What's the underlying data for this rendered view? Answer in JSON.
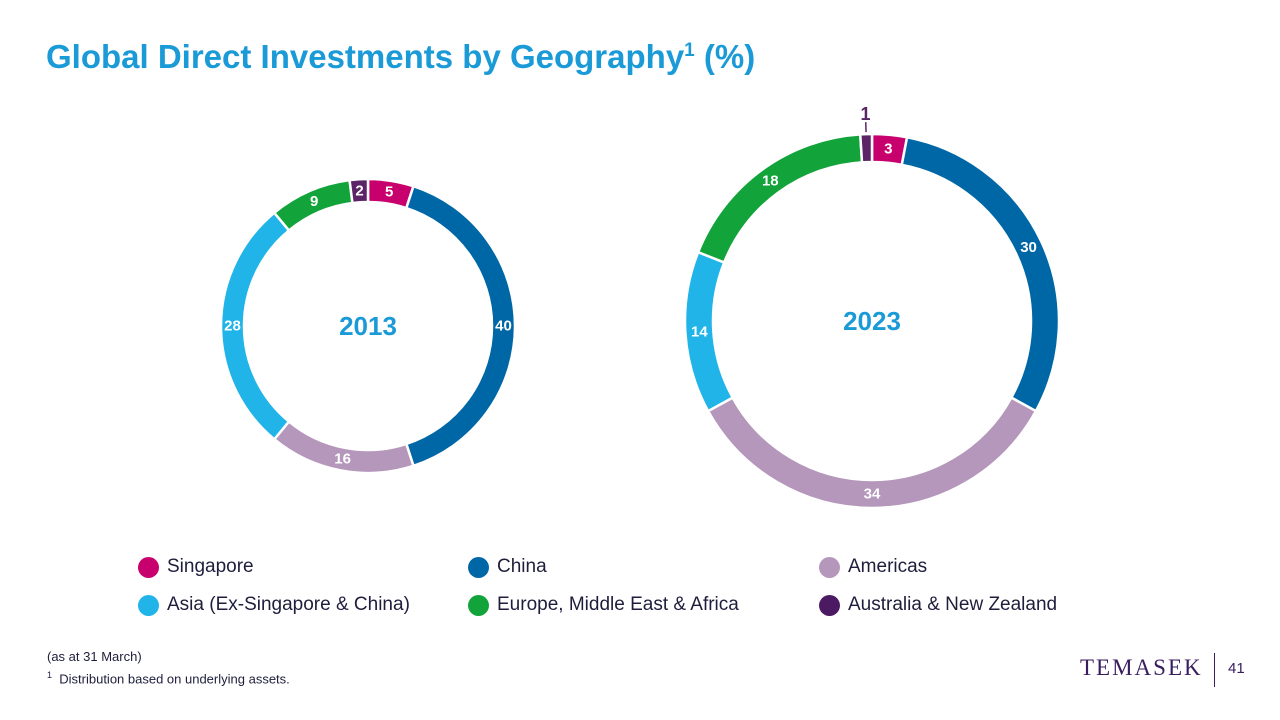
{
  "slide": {
    "title": "Global Direct Investments by Geography",
    "title_superscript": "1",
    "title_suffix": " (%)"
  },
  "chart_data": [
    {
      "type": "pie",
      "center_label": "2013",
      "series": [
        {
          "name": "Singapore",
          "value": 5,
          "color": "#c8006e"
        },
        {
          "name": "China",
          "value": 40,
          "color": "#0067a6"
        },
        {
          "name": "Americas",
          "value": 16,
          "color": "#b597bc"
        },
        {
          "name": "Asia (Ex-Singapore & China)",
          "value": 28,
          "color": "#20b4e8"
        },
        {
          "name": "Europe, Middle East & Africa",
          "value": 9,
          "color": "#12a43a"
        },
        {
          "name": "Australia & New Zealand",
          "value": 2,
          "color": "#5a2467"
        }
      ]
    },
    {
      "type": "pie",
      "center_label": "2023",
      "series": [
        {
          "name": "Singapore",
          "value": 3,
          "color": "#c8006e"
        },
        {
          "name": "China",
          "value": 30,
          "color": "#0067a6"
        },
        {
          "name": "Americas",
          "value": 34,
          "color": "#b597bc"
        },
        {
          "name": "Asia (Ex-Singapore & China)",
          "value": 14,
          "color": "#20b4e8"
        },
        {
          "name": "Europe, Middle East & Africa",
          "value": 18,
          "color": "#12a43a"
        },
        {
          "name": "Australia & New Zealand",
          "value": 1,
          "color": "#5a2467"
        }
      ]
    }
  ],
  "legend": [
    {
      "label": "Singapore",
      "color": "#c8006e"
    },
    {
      "label": "China",
      "color": "#0067a6"
    },
    {
      "label": "Americas",
      "color": "#b597bc"
    },
    {
      "label": "Asia (Ex-Singapore & China)",
      "color": "#20b4e8"
    },
    {
      "label": "Europe, Middle East & Africa",
      "color": "#12a43a"
    },
    {
      "label": "Australia & New Zealand",
      "color": "#4b1a63"
    }
  ],
  "footnotes": {
    "as_at": "(as at 31 March)",
    "note_marker": "1",
    "note_text": "Distribution based on underlying assets."
  },
  "brand": {
    "logo_text": "TEMASEK",
    "page_number": "41"
  }
}
